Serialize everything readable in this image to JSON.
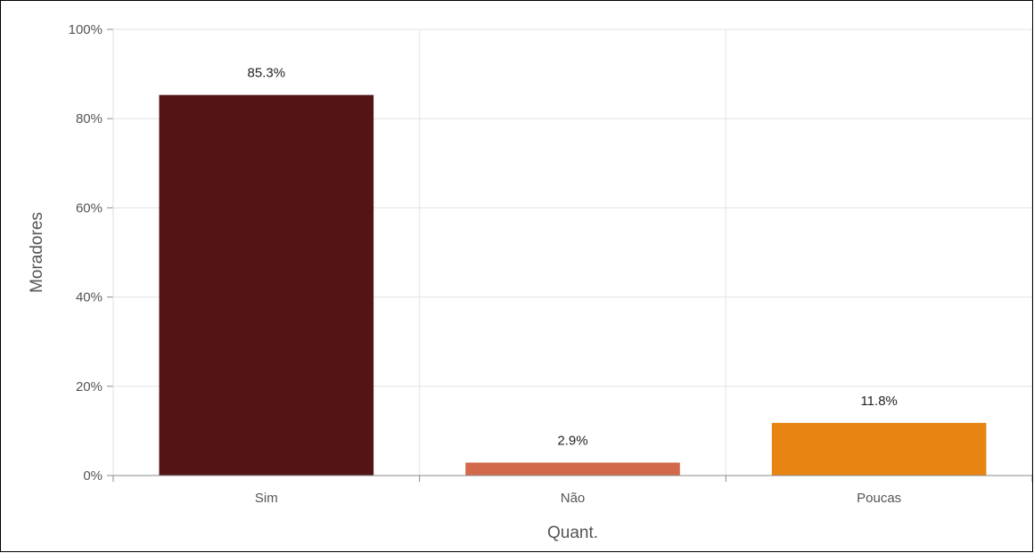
{
  "chart_data": {
    "type": "bar",
    "categories": [
      "Sim",
      "Não",
      "Poucas"
    ],
    "values": [
      85.3,
      2.9,
      11.8
    ],
    "data_labels": [
      "85.3%",
      "2.9%",
      "11.8%"
    ],
    "bar_colors": [
      "#521414",
      "#d2694a",
      "#e88412"
    ],
    "xlabel": "Quant.",
    "ylabel": "Moradores",
    "ylim": [
      0,
      100
    ],
    "yticks": [
      0,
      20,
      40,
      60,
      80,
      100
    ],
    "ytick_labels": [
      "0%",
      "20%",
      "40%",
      "60%",
      "80%",
      "100%"
    ],
    "grid": true,
    "legend": "none"
  }
}
